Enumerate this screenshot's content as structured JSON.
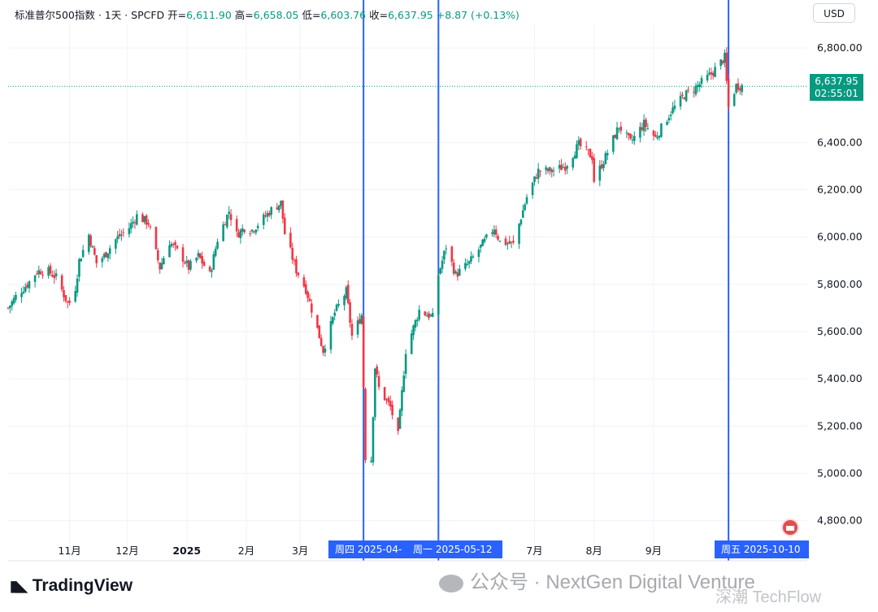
{
  "header": {
    "symbol": "标准普尔500指数 · 1天 · SPCFD",
    "open_label": "开=",
    "open_value": "6,611.90",
    "high_label": "高=",
    "high_value": "6,658.05",
    "low_label": "低=",
    "low_value": "6,603.76",
    "close_label": "收=",
    "close_value": "6,637.95",
    "change": "+8.87 (+0.13%)"
  },
  "currency_button": "USD",
  "last_price": {
    "price": "6,637.95",
    "countdown": "02:55:01"
  },
  "selection_labels": {
    "start": "周四 2025-04-",
    "end": "周一 2025-05-12",
    "marker": "周五 2025-10-10"
  },
  "branding": {
    "tradingview": "TradingView"
  },
  "watermarks": {
    "wechat": "公众号 · NextGen Digital Venture",
    "source": "深潮 TechFlow"
  },
  "colors": {
    "up": "#089981",
    "down": "#f23645",
    "marker_line": "#2962ff",
    "grid": "#f0f3fa"
  },
  "chart_data": {
    "type": "candlestick",
    "title": "标准普尔500指数 · 1天 · SPCFD",
    "y_axis": {
      "ticks": [
        4800,
        5000,
        5200,
        5400,
        5600,
        5800,
        6000,
        6200,
        6400,
        6800
      ],
      "labels": [
        "4,800.00",
        "5,000.00",
        "5,200.00",
        "5,400.00",
        "5,600.00",
        "5,800.00",
        "6,000.00",
        "6,200.00",
        "6,400.00",
        "6,800.00"
      ],
      "range": [
        4630,
        6900
      ]
    },
    "x_axis": {
      "ticks": [
        {
          "label": "11月",
          "date": "2024-11-01",
          "bold": false
        },
        {
          "label": "12月",
          "date": "2024-12-01",
          "bold": false
        },
        {
          "label": "2025",
          "date": "2025-01-01",
          "bold": true
        },
        {
          "label": "2月",
          "date": "2025-02-01",
          "bold": false
        },
        {
          "label": "3月",
          "date": "2025-03-01",
          "bold": false
        },
        {
          "label": "7月",
          "date": "2025-07-01",
          "bold": false
        },
        {
          "label": "8月",
          "date": "2025-08-01",
          "bold": false
        },
        {
          "label": "9月",
          "date": "2025-09-01",
          "bold": false
        }
      ],
      "range": [
        "2024-09-30",
        "2025-11-20"
      ]
    },
    "vertical_markers": [
      "2025-04-03",
      "2025-05-12",
      "2025-10-10"
    ],
    "last_price_line": 6637.95,
    "grid": true,
    "close_path": [
      [
        "2024-09-30",
        5700
      ],
      [
        "2024-10-05",
        5760
      ],
      [
        "2024-10-10",
        5800
      ],
      [
        "2024-10-15",
        5855
      ],
      [
        "2024-10-20",
        5860
      ],
      [
        "2024-10-25",
        5830
      ],
      [
        "2024-10-31",
        5720
      ],
      [
        "2024-11-03",
        5730
      ],
      [
        "2024-11-06",
        5900
      ],
      [
        "2024-11-11",
        6010
      ],
      [
        "2024-11-15",
        5890
      ],
      [
        "2024-11-19",
        5920
      ],
      [
        "2024-11-25",
        5990
      ],
      [
        "2024-12-02",
        6040
      ],
      [
        "2024-12-06",
        6090
      ],
      [
        "2024-12-12",
        6060
      ],
      [
        "2024-12-18",
        5870
      ],
      [
        "2024-12-23",
        5980
      ],
      [
        "2024-12-30",
        5910
      ],
      [
        "2025-01-02",
        5870
      ],
      [
        "2025-01-07",
        5920
      ],
      [
        "2025-01-13",
        5840
      ],
      [
        "2025-01-17",
        5990
      ],
      [
        "2025-01-23",
        6110
      ],
      [
        "2025-01-27",
        6010
      ],
      [
        "2025-01-31",
        6040
      ],
      [
        "2025-02-04",
        6030
      ],
      [
        "2025-02-10",
        6080
      ],
      [
        "2025-02-14",
        6115
      ],
      [
        "2025-02-19",
        6145
      ],
      [
        "2025-02-21",
        6015
      ],
      [
        "2025-02-27",
        5860
      ],
      [
        "2025-03-04",
        5780
      ],
      [
        "2025-03-10",
        5610
      ],
      [
        "2025-03-13",
        5520
      ],
      [
        "2025-03-19",
        5680
      ],
      [
        "2025-03-25",
        5770
      ],
      [
        "2025-03-28",
        5580
      ],
      [
        "2025-04-02",
        5670
      ],
      [
        "2025-04-04",
        5070
      ],
      [
        "2025-04-07",
        5060
      ],
      [
        "2025-04-09",
        5450
      ],
      [
        "2025-04-11",
        5360
      ],
      [
        "2025-04-17",
        5280
      ],
      [
        "2025-04-21",
        5160
      ],
      [
        "2025-04-25",
        5520
      ],
      [
        "2025-05-02",
        5690
      ],
      [
        "2025-05-09",
        5660
      ],
      [
        "2025-05-12",
        5840
      ],
      [
        "2025-05-16",
        5960
      ],
      [
        "2025-05-21",
        5840
      ],
      [
        "2025-05-28",
        5890
      ],
      [
        "2025-06-04",
        5970
      ],
      [
        "2025-06-10",
        6040
      ],
      [
        "2025-06-13",
        5980
      ],
      [
        "2025-06-20",
        5970
      ],
      [
        "2025-06-27",
        6170
      ],
      [
        "2025-07-03",
        6280
      ],
      [
        "2025-07-10",
        6280
      ],
      [
        "2025-07-17",
        6300
      ],
      [
        "2025-07-24",
        6390
      ],
      [
        "2025-07-31",
        6340
      ],
      [
        "2025-08-01",
        6240
      ],
      [
        "2025-08-07",
        6340
      ],
      [
        "2025-08-14",
        6470
      ],
      [
        "2025-08-20",
        6400
      ],
      [
        "2025-08-27",
        6480
      ],
      [
        "2025-09-02",
        6420
      ],
      [
        "2025-09-10",
        6530
      ],
      [
        "2025-09-17",
        6600
      ],
      [
        "2025-09-24",
        6640
      ],
      [
        "2025-10-01",
        6690
      ],
      [
        "2025-10-08",
        6760
      ],
      [
        "2025-10-10",
        6550
      ],
      [
        "2025-10-14",
        6640
      ],
      [
        "2025-10-17",
        6640
      ]
    ]
  }
}
